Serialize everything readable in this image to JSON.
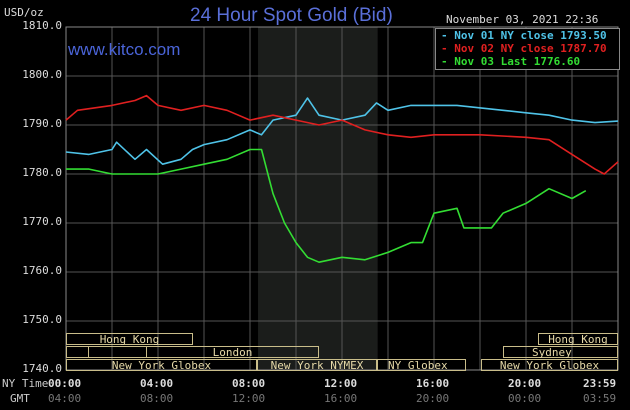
{
  "header": {
    "title": "24 Hour Spot Gold (Bid)",
    "unit": "USD/oz",
    "website": "www.kitco.com",
    "timestamp": "November 03, 2021 22:36"
  },
  "legend": [
    {
      "label": "Nov 01 NY close 1793.50",
      "color": "#4fc3e8"
    },
    {
      "label": "Nov 02 NY close 1787.70",
      "color": "#e02020"
    },
    {
      "label": "Nov 03 Last 1776.60",
      "color": "#33dd33"
    }
  ],
  "axis": {
    "row_ny": "NY Time",
    "row_gmt": "GMT",
    "ny_ticks": [
      "00:00",
      "04:00",
      "08:00",
      "12:00",
      "16:00",
      "20:00",
      "23:59"
    ],
    "gmt_ticks": [
      "04:00",
      "08:00",
      "12:00",
      "16:00",
      "20:00",
      "00:00",
      "03:59"
    ]
  },
  "sessions": {
    "hk1": "Hong Kong",
    "london": "London",
    "nyg1": "New York Globex",
    "nymex": "New York NYMEX",
    "nyg2": "NY Globex",
    "hk2": "Hong Kong",
    "sydney": "Sydney",
    "nyg3": "New York Globex"
  },
  "chart_data": {
    "type": "line",
    "title": "24 Hour Spot Gold (Bid)",
    "ylabel": "USD/oz",
    "xlabel": "NY Time",
    "xlim": [
      0,
      24
    ],
    "ylim": [
      1740,
      1810
    ],
    "yticks": [
      "1810.0",
      "1800.0",
      "1790.0",
      "1780.0",
      "1770.0",
      "1760.0",
      "1750.0",
      "1740.0"
    ],
    "grid": true,
    "legend_position": "top-right",
    "shaded_hours": [
      8.35,
      13.55
    ],
    "series": [
      {
        "name": "Nov 01 NY close 1793.50",
        "color": "#4fc3e8",
        "x": [
          0,
          1,
          2,
          2.2,
          3,
          3.5,
          4.2,
          5,
          5.5,
          6,
          7,
          8,
          8.5,
          9,
          10,
          10.5,
          11,
          12,
          13,
          13.5,
          14,
          15,
          17,
          19,
          20,
          21,
          22,
          23,
          24
        ],
        "y": [
          1784.5,
          1784,
          1785,
          1786.5,
          1783,
          1785,
          1782,
          1783,
          1785,
          1786,
          1787,
          1789,
          1788,
          1791,
          1792,
          1795.5,
          1792,
          1791,
          1792,
          1794.5,
          1793,
          1794,
          1794,
          1793,
          1792.5,
          1792,
          1791,
          1790.5,
          1790.8
        ]
      },
      {
        "name": "Nov 02 NY close 1787.70",
        "color": "#e02020",
        "x": [
          0,
          0.5,
          2,
          3,
          3.5,
          4,
          5,
          6,
          7,
          8,
          9,
          10,
          11,
          12,
          13,
          14,
          15,
          16,
          18,
          20,
          21,
          22,
          23,
          23.4,
          24
        ],
        "y": [
          1791,
          1793,
          1794,
          1795,
          1796,
          1794,
          1793,
          1794,
          1793,
          1791,
          1792,
          1791,
          1790,
          1791,
          1789,
          1788,
          1787.5,
          1788,
          1788,
          1787.5,
          1787,
          1784,
          1781,
          1780,
          1782.5
        ]
      },
      {
        "name": "Nov 03 Last 1776.60",
        "color": "#33dd33",
        "x": [
          0,
          1,
          2,
          3,
          4,
          5,
          6,
          7,
          8,
          8.5,
          9,
          9.5,
          10,
          10.5,
          11,
          12,
          13,
          14,
          15,
          15.5,
          16,
          17,
          17.3,
          18.5,
          19,
          20,
          21,
          22,
          22.6
        ],
        "y": [
          1781,
          1781,
          1780,
          1780,
          1780,
          1781,
          1782,
          1783,
          1785,
          1785,
          1776,
          1770,
          1766,
          1763,
          1762,
          1763,
          1762.5,
          1764,
          1766,
          1766,
          1772,
          1773,
          1769,
          1769,
          1772,
          1774,
          1777,
          1775,
          1776.6
        ]
      }
    ]
  }
}
